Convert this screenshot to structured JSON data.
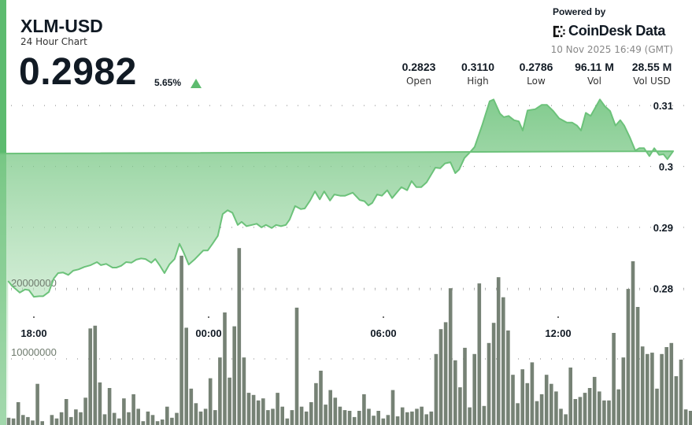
{
  "header": {
    "title": "XLM-USD",
    "subtitle": "24 Hour Chart",
    "price": "0.2982",
    "change": "5.65%",
    "change_direction": "up",
    "powered_by": "Powered by",
    "brand": "CoinDesk Data",
    "timestamp": "10 Nov 2025 16:49 (GMT)"
  },
  "stats": [
    {
      "value": "0.2823",
      "label": "Open"
    },
    {
      "value": "0.3110",
      "label": "High"
    },
    {
      "value": "0.2786",
      "label": "Low"
    },
    {
      "value": "96.11 M",
      "label": "Vol"
    },
    {
      "value": "28.55 M",
      "label": "Vol USD"
    }
  ],
  "colors": {
    "accent": "#5dbb6f",
    "line": "#6cc27a",
    "volume": "#6f7b6e",
    "text": "#111a24"
  },
  "chart_data": {
    "type": "line",
    "title": "",
    "xlabel": "",
    "ylabel": "",
    "x_ticks": [
      "18:00",
      "00:00",
      "06:00",
      "12:00"
    ],
    "y_ticks": [
      "0.28",
      "0.29",
      "0.3",
      "0.31"
    ],
    "y_tick_values": [
      0.28,
      0.29,
      0.3,
      0.31
    ],
    "ylim": [
      0.2765,
      0.3125
    ],
    "grid": true,
    "price_series": {
      "x": [
        "17:07",
        "17:15",
        "17:31",
        "17:42",
        "17:50",
        "18:00",
        "18:11",
        "18:19",
        "18:31",
        "18:41",
        "18:50",
        "19:00",
        "19:11",
        "19:21",
        "19:32",
        "19:44",
        "19:57",
        "20:10",
        "20:18",
        "20:29",
        "20:42",
        "20:50",
        "21:00",
        "21:10",
        "21:21",
        "21:31",
        "21:41",
        "21:50",
        "22:02",
        "22:10",
        "22:19",
        "22:29",
        "22:39",
        "22:50",
        "23:00",
        "23:08",
        "23:19",
        "23:32",
        "23:49",
        "23:58",
        "00:08",
        "00:19",
        "00:29",
        "00:39",
        "00:49",
        "01:00",
        "01:08",
        "01:18",
        "01:29",
        "01:39",
        "01:49",
        "01:58",
        "02:10",
        "02:19",
        "02:29",
        "02:39",
        "02:47",
        "02:58",
        "03:10",
        "03:18",
        "03:29",
        "03:39",
        "03:49",
        "03:58",
        "04:10",
        "04:19",
        "04:31",
        "04:41",
        "04:57",
        "05:11",
        "05:21",
        "05:29",
        "05:37",
        "05:47",
        "05:57",
        "06:08",
        "06:18",
        "06:37",
        "06:49",
        "06:58",
        "07:08",
        "07:18",
        "07:29",
        "07:47",
        "07:57",
        "08:07",
        "08:18",
        "08:28",
        "08:36",
        "08:47",
        "08:58",
        "09:08",
        "09:24",
        "09:39",
        "09:47",
        "10:00",
        "10:08",
        "10:18",
        "10:29",
        "10:39",
        "10:47",
        "10:57",
        "11:13",
        "11:26",
        "11:37",
        "11:50",
        "12:02",
        "12:18",
        "12:29",
        "12:39",
        "12:47",
        "12:57",
        "13:07",
        "13:26",
        "13:36",
        "13:47",
        "13:58",
        "14:08",
        "14:16",
        "14:28",
        "14:39",
        "14:47",
        "14:57",
        "15:08",
        "15:18",
        "15:28",
        "15:37",
        "15:45",
        "15:57",
        "16:08",
        "16:24",
        "16:36"
      ],
      "y": [
        0.2812,
        0.2804,
        0.2793,
        0.2798,
        0.2797,
        0.2786,
        0.2787,
        0.2787,
        0.2794,
        0.2816,
        0.2825,
        0.2826,
        0.2822,
        0.2829,
        0.2831,
        0.2835,
        0.2838,
        0.2843,
        0.2838,
        0.284,
        0.2834,
        0.2834,
        0.2837,
        0.2843,
        0.2842,
        0.2847,
        0.2849,
        0.2848,
        0.2842,
        0.2848,
        0.2838,
        0.2825,
        0.2839,
        0.2848,
        0.2873,
        0.286,
        0.2839,
        0.2848,
        0.2862,
        0.2862,
        0.2873,
        0.2886,
        0.2922,
        0.2928,
        0.2924,
        0.2904,
        0.2909,
        0.2902,
        0.2904,
        0.2906,
        0.29,
        0.2904,
        0.2899,
        0.2904,
        0.2902,
        0.2904,
        0.2913,
        0.2935,
        0.293,
        0.2931,
        0.2944,
        0.2959,
        0.2946,
        0.2959,
        0.2944,
        0.2954,
        0.2952,
        0.2952,
        0.2957,
        0.2945,
        0.2943,
        0.2936,
        0.294,
        0.2954,
        0.2952,
        0.2961,
        0.2948,
        0.2966,
        0.2961,
        0.2976,
        0.2966,
        0.2966,
        0.2974,
        0.2998,
        0.2997,
        0.3005,
        0.3007,
        0.2989,
        0.2995,
        0.3014,
        0.3023,
        0.3032,
        0.3069,
        0.3107,
        0.311,
        0.3087,
        0.3081,
        0.3083,
        0.3076,
        0.3074,
        0.3059,
        0.3092,
        0.3094,
        0.3101,
        0.3101,
        0.3091,
        0.3079,
        0.3072,
        0.3072,
        0.3067,
        0.3059,
        0.3088,
        0.3083,
        0.311,
        0.3099,
        0.3091,
        0.3067,
        0.3076,
        0.3067,
        0.3047,
        0.3026,
        0.303,
        0.303,
        0.3017,
        0.303,
        0.3019,
        0.302,
        0.3012,
        0.3025,
        0.3021,
        0.2998,
        0.2988
      ]
    },
    "volume_series": {
      "type": "bar",
      "y_ticks": [
        "10000000",
        "20000000"
      ],
      "y_tick_values": [
        10000000,
        20000000
      ],
      "values_millions": [
        1.5,
        1.4,
        3.75,
        1.9,
        1.6,
        1.1,
        6.4,
        1.0,
        0.3,
        1.9,
        1.4,
        2.3,
        4.2,
        1.6,
        2.7,
        2.3,
        4.4,
        14.4,
        14.8,
        6.6,
        2.0,
        5.8,
        2.2,
        1.4,
        4.3,
        2.3,
        4.9,
        2.8,
        1.0,
        2.4,
        1.9,
        1.0,
        1.25,
        3.1,
        1.5,
        2.2,
        24.9,
        14.5,
        5.7,
        3.6,
        2.4,
        2.8,
        7.2,
        2.6,
        10.2,
        16.7,
        7.3,
        14.7,
        26.0,
        10.2,
        5.1,
        4.8,
        4.0,
        4.3,
        2.6,
        2.8,
        5.1,
        3.1,
        1.4,
        2.6,
        17.4,
        3.1,
        2.4,
        3.75,
        6.5,
        8.3,
        3.4,
        5.5,
        4.4,
        3.1,
        2.6,
        2.5,
        1.6,
        2.5,
        4.9,
        2.8,
        1.8,
        2.5,
        1.4,
        1.9,
        5.5,
        1.7,
        3.0,
        2.3,
        2.4,
        2.8,
        3.1,
        2.0,
        2.4,
        10.7,
        14.3,
        15.3,
        20.2,
        9.8,
        5.9,
        11.6,
        3.0,
        10.7,
        20.9,
        3.2,
        12.3,
        15.2,
        21.8,
        18.9,
        14.1,
        7.7,
        3.6,
        8.5,
        6.5,
        9.5,
        3.9,
        4.9,
        7.7,
        6.4,
        5.3,
        2.8,
        2.0,
        8.75,
        4.2,
        4.5,
        5.1,
        5.8,
        7.4,
        5.3,
        4.0,
        4.0,
        13.75,
        5.6,
        10.2,
        20.1,
        24.1,
        17.5,
        11.8,
        10.7,
        10.9,
        5.7,
        10.7,
        11.7,
        12.3,
        7.5,
        9.9,
        2.7,
        2.5
      ]
    }
  }
}
